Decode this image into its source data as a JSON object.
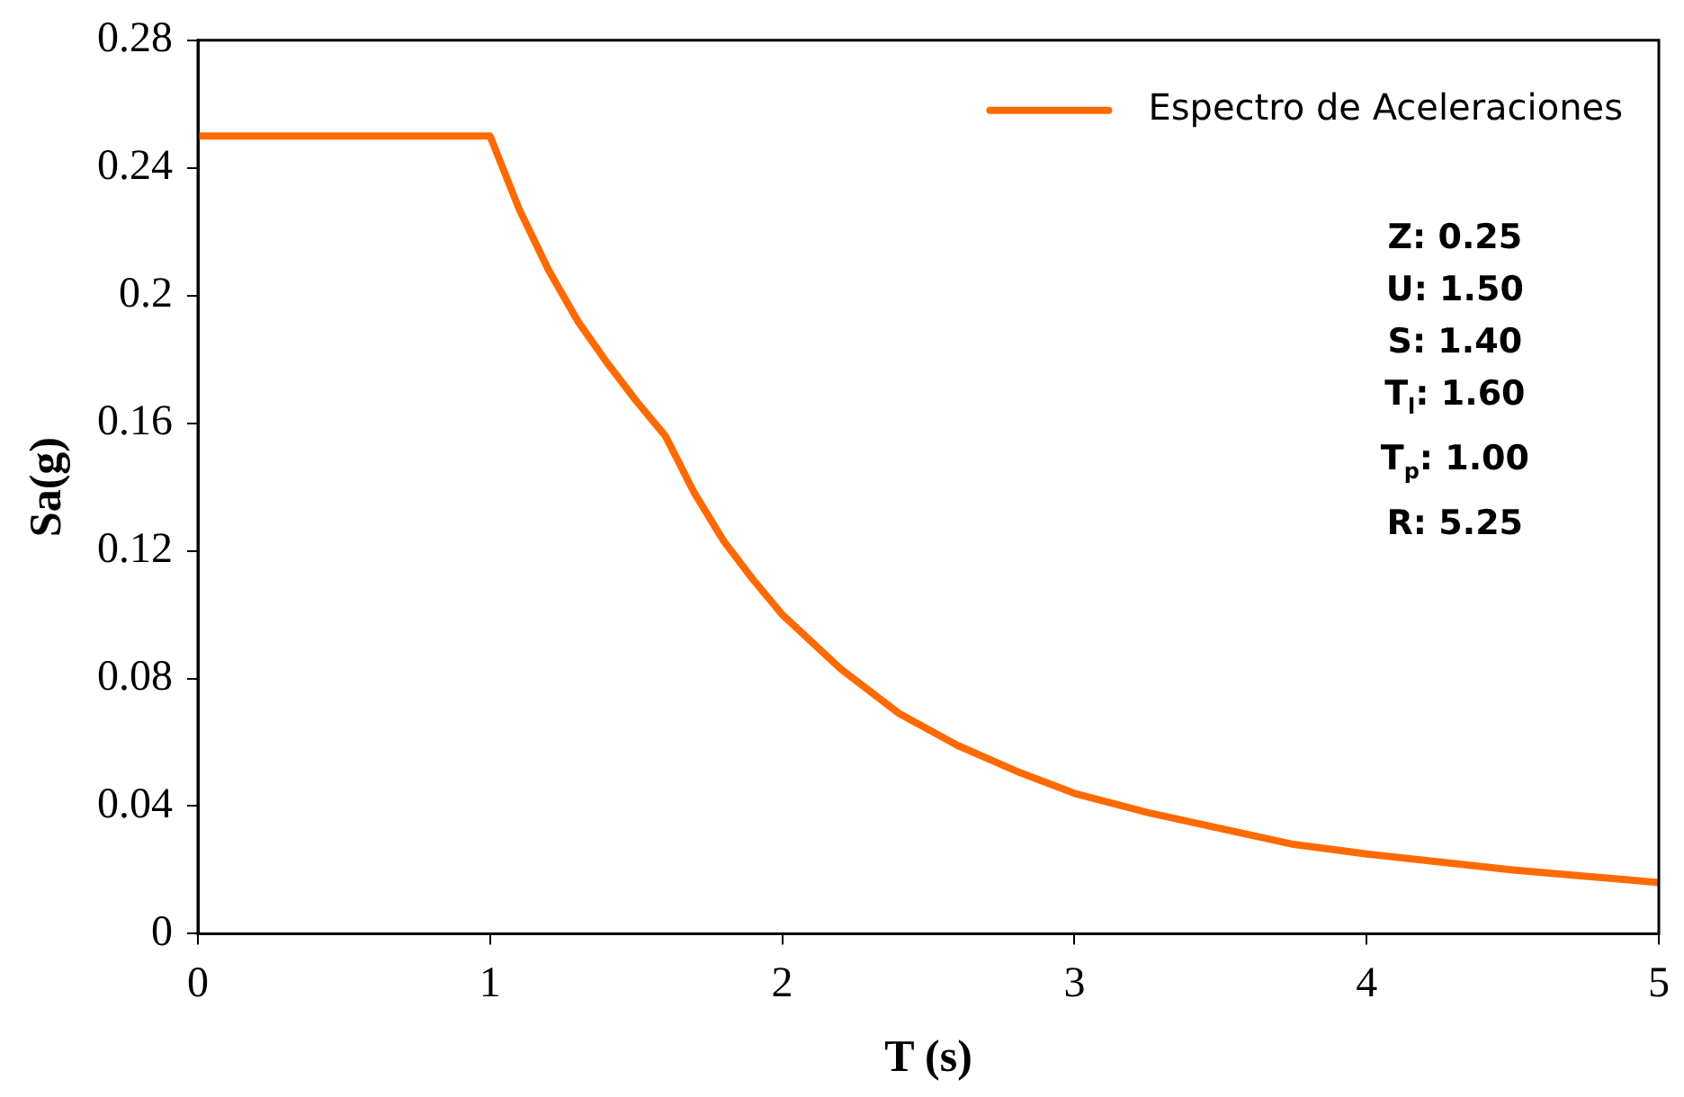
{
  "chart_data": {
    "type": "line",
    "xlabel": "T (s)",
    "ylabel": "Sa(g)",
    "x": [
      0,
      1,
      1.1,
      1.2,
      1.3,
      1.4,
      1.5,
      1.6,
      1.7,
      1.8,
      1.9,
      2,
      2.2,
      2.4,
      2.6,
      2.8,
      3,
      3.25,
      3.5,
      3.75,
      4,
      4.5,
      5
    ],
    "series": [
      {
        "name": "Espectro de Aceleraciones",
        "color": "#ff6a00",
        "values": [
          0.25,
          0.25,
          0.227,
          0.208,
          0.192,
          0.179,
          0.167,
          0.156,
          0.138,
          0.123,
          0.111,
          0.1,
          0.083,
          0.069,
          0.059,
          0.051,
          0.044,
          0.038,
          0.033,
          0.028,
          0.025,
          0.02,
          0.016
        ]
      }
    ],
    "xlim": [
      0,
      5
    ],
    "xticks": [
      0,
      1,
      2,
      3,
      4,
      5
    ],
    "ylim": [
      0,
      0.28
    ],
    "yticks": [
      0,
      0.04,
      0.08,
      0.12,
      0.16,
      0.2,
      0.24,
      0.28
    ],
    "grid": false,
    "legend": "top right",
    "marker": "none",
    "line_style": "solid",
    "annotations": [
      "Z: 0.25",
      "U: 1.50",
      "S: 1.40",
      "T$_{l}$: 1.60",
      "T$_{p}$: 1.00",
      "R: 5.25"
    ]
  }
}
